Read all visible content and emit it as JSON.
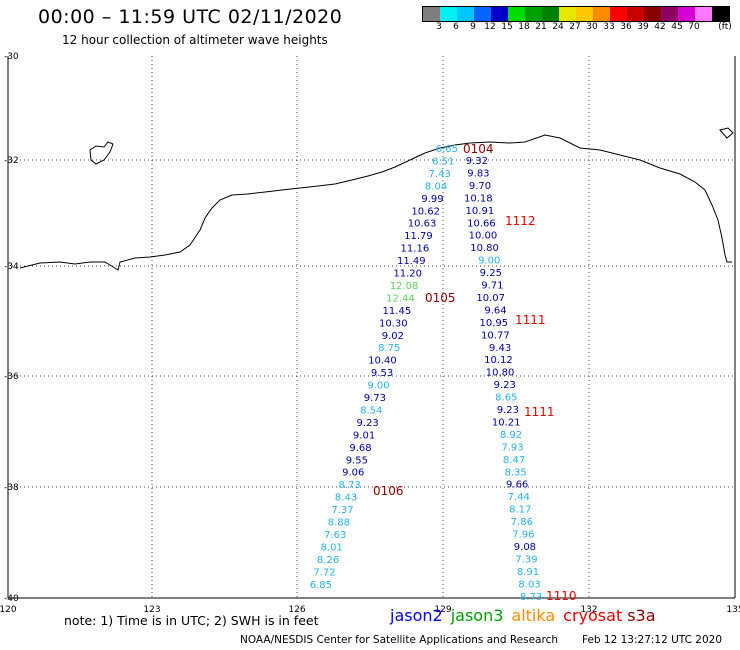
{
  "header": {
    "title": "00:00 – 11:59 UTC 02/11/2020",
    "subtitle": "12 hour collection of altimeter wave heights"
  },
  "colorbar": {
    "colors": [
      "#7f7f7f",
      "#00f0f0",
      "#00c8ff",
      "#0064ff",
      "#0000c8",
      "#00dc00",
      "#00a000",
      "#008000",
      "#e6e600",
      "#ffc800",
      "#ff8c00",
      "#ff0000",
      "#c80000",
      "#8b0000",
      "#900060",
      "#d200d2",
      "#ff78ff",
      "#000000"
    ],
    "ticks": [
      "3",
      "6",
      "9",
      "12",
      "15",
      "18",
      "21",
      "24",
      "27",
      "30",
      "33",
      "36",
      "39",
      "42",
      "45",
      "70"
    ],
    "unit": "(ft)"
  },
  "axes": {
    "lat_labels": [
      "-30",
      "-32",
      "-34",
      "-36",
      "-38",
      "-40"
    ],
    "lon_labels": [
      "120",
      "123",
      "126",
      "129",
      "132",
      "135"
    ]
  },
  "passes": [
    {
      "label": "0104",
      "color": "#8b0000"
    },
    {
      "label": "1112",
      "color": "#e60000"
    },
    {
      "label": "0105",
      "color": "#8b0000"
    },
    {
      "label": "1111",
      "color": "#e60000"
    },
    {
      "label": "1111",
      "color": "#e60000"
    },
    {
      "label": "0106",
      "color": "#8b0000"
    },
    {
      "label": "1110",
      "color": "#e60000"
    }
  ],
  "tracks": {
    "left": [
      {
        "v": "6.65",
        "c": "#28b4e6"
      },
      {
        "v": "6.51",
        "c": "#28b4e6"
      },
      {
        "v": "7.43",
        "c": "#28b4e6"
      },
      {
        "v": "8.04",
        "c": "#28b4e6"
      },
      {
        "v": "9.99",
        "c": "#0000a0"
      },
      {
        "v": "10.62",
        "c": "#0000a0"
      },
      {
        "v": "10.63",
        "c": "#0000a0"
      },
      {
        "v": "11.79",
        "c": "#0000a0"
      },
      {
        "v": "11.16",
        "c": "#0000a0"
      },
      {
        "v": "11.49",
        "c": "#0000a0"
      },
      {
        "v": "11.20",
        "c": "#0000a0"
      },
      {
        "v": "12.08",
        "c": "#5ad25a"
      },
      {
        "v": "12.44",
        "c": "#5ad25a"
      },
      {
        "v": "11.45",
        "c": "#0000a0"
      },
      {
        "v": "10.30",
        "c": "#0000a0"
      },
      {
        "v": "9.02",
        "c": "#0000a0"
      },
      {
        "v": "8.75",
        "c": "#28b4e6"
      },
      {
        "v": "10.40",
        "c": "#0000a0"
      },
      {
        "v": "9.53",
        "c": "#0000a0"
      },
      {
        "v": "9.00",
        "c": "#28b4e6"
      },
      {
        "v": "9.73",
        "c": "#0000a0"
      },
      {
        "v": "8.54",
        "c": "#28b4e6"
      },
      {
        "v": "9.23",
        "c": "#0000a0"
      },
      {
        "v": "9.01",
        "c": "#0000a0"
      },
      {
        "v": "9.68",
        "c": "#0000a0"
      },
      {
        "v": "9.55",
        "c": "#0000a0"
      },
      {
        "v": "9.06",
        "c": "#0000a0"
      },
      {
        "v": "8.73",
        "c": "#28b4e6"
      },
      {
        "v": "8.43",
        "c": "#28b4e6"
      },
      {
        "v": "7.37",
        "c": "#28b4e6"
      },
      {
        "v": "8.88",
        "c": "#28b4e6"
      },
      {
        "v": "7.63",
        "c": "#28b4e6"
      },
      {
        "v": "8.01",
        "c": "#28b4e6"
      },
      {
        "v": "8.26",
        "c": "#28b4e6"
      },
      {
        "v": "7.72",
        "c": "#28b4e6"
      },
      {
        "v": "6.85",
        "c": "#28b4e6"
      }
    ],
    "right": [
      {
        "v": "9.32",
        "c": "#0000a0"
      },
      {
        "v": "9.83",
        "c": "#0000a0"
      },
      {
        "v": "9.70",
        "c": "#0000a0"
      },
      {
        "v": "10.18",
        "c": "#0000a0"
      },
      {
        "v": "10.91",
        "c": "#0000a0"
      },
      {
        "v": "10.66",
        "c": "#0000a0"
      },
      {
        "v": "10.00",
        "c": "#0000a0"
      },
      {
        "v": "10.80",
        "c": "#0000a0"
      },
      {
        "v": "9.00",
        "c": "#28b4e6"
      },
      {
        "v": "9.25",
        "c": "#0000a0"
      },
      {
        "v": "9.71",
        "c": "#0000a0"
      },
      {
        "v": "10.07",
        "c": "#0000a0"
      },
      {
        "v": "9.64",
        "c": "#0000a0"
      },
      {
        "v": "10.95",
        "c": "#0000a0"
      },
      {
        "v": "10.77",
        "c": "#0000a0"
      },
      {
        "v": "9.43",
        "c": "#0000a0"
      },
      {
        "v": "10.12",
        "c": "#0000a0"
      },
      {
        "v": "10.80",
        "c": "#0000a0"
      },
      {
        "v": "9.23",
        "c": "#0000a0"
      },
      {
        "v": "8.65",
        "c": "#28b4e6"
      },
      {
        "v": "9.23",
        "c": "#0000a0"
      },
      {
        "v": "10.21",
        "c": "#0000a0"
      },
      {
        "v": "8.92",
        "c": "#28b4e6"
      },
      {
        "v": "7.93",
        "c": "#28b4e6"
      },
      {
        "v": "8.47",
        "c": "#28b4e6"
      },
      {
        "v": "8.35",
        "c": "#28b4e6"
      },
      {
        "v": "9.66",
        "c": "#0000a0"
      },
      {
        "v": "7.44",
        "c": "#28b4e6"
      },
      {
        "v": "8.17",
        "c": "#28b4e6"
      },
      {
        "v": "7.86",
        "c": "#28b4e6"
      },
      {
        "v": "7.96",
        "c": "#28b4e6"
      },
      {
        "v": "9.08",
        "c": "#0000a0"
      },
      {
        "v": "7.39",
        "c": "#28b4e6"
      },
      {
        "v": "8.91",
        "c": "#28b4e6"
      },
      {
        "v": "8.03",
        "c": "#28b4e6"
      },
      {
        "v": "8.73",
        "c": "#28b4e6"
      }
    ]
  },
  "footer": {
    "note": "note:  1) Time is in UTC;  2) SWH is in feet",
    "legend": [
      {
        "name": "jason2",
        "color": "#0000e6"
      },
      {
        "name": "jason3",
        "color": "#00a000"
      },
      {
        "name": "altika",
        "color": "#ff8c00"
      },
      {
        "name": "cryosat",
        "color": "#e60000"
      },
      {
        "name": "s3a",
        "color": "#8b0000"
      }
    ],
    "credit": "NOAA/NESDIS Center for Satellite Applications and Research",
    "timestamp": "Feb 12 13:27:12 UTC 2020"
  }
}
